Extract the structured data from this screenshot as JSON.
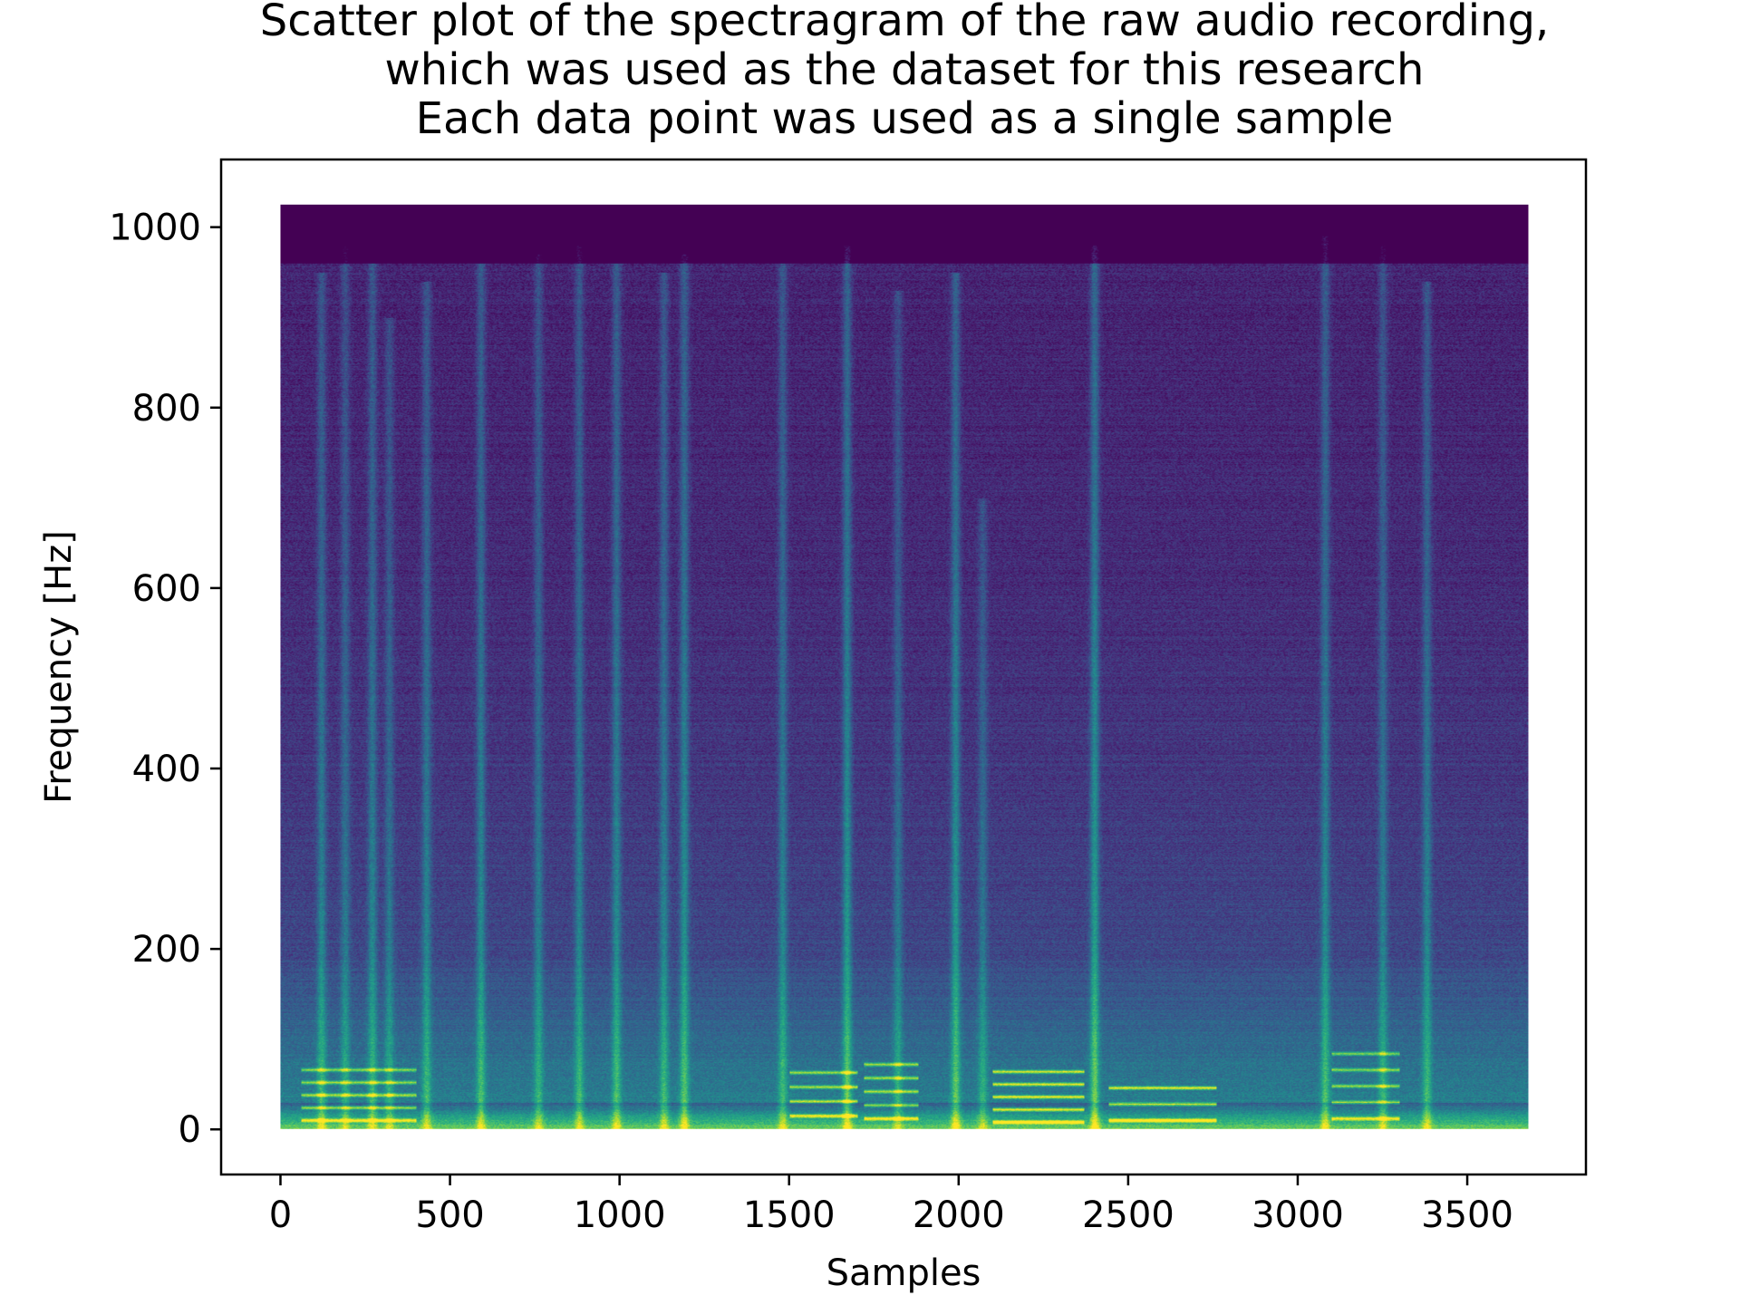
{
  "chart_data": {
    "type": "scatter",
    "render_style": "spectrogram",
    "colormap": "viridis",
    "title_lines": [
      "Scatter plot of the spectragram of the raw audio recording,",
      "which was used as the dataset for this research",
      "Each data point was used as a single sample"
    ],
    "xlabel": "Samples",
    "ylabel": "Frequency [Hz]",
    "xlim": [
      -175,
      3850
    ],
    "ylim": [
      -50,
      1075
    ],
    "data_extent": {
      "x": [
        0,
        3680
      ],
      "y": [
        0,
        1025
      ]
    },
    "xticks": [
      0,
      500,
      1000,
      1500,
      2000,
      2500,
      3000,
      3500
    ],
    "xtick_labels": [
      "0",
      "500",
      "1000",
      "1500",
      "2000",
      "2500",
      "3000",
      "3500"
    ],
    "yticks": [
      0,
      200,
      400,
      600,
      800,
      1000
    ],
    "ytick_labels": [
      "0",
      "200",
      "400",
      "600",
      "800",
      "1000"
    ],
    "grid": false,
    "legend": false,
    "vertical_bursts": [
      {
        "x": 120,
        "top": 950,
        "strength": 0.55
      },
      {
        "x": 190,
        "top": 980,
        "strength": 0.45
      },
      {
        "x": 270,
        "top": 960,
        "strength": 0.55
      },
      {
        "x": 320,
        "top": 900,
        "strength": 0.45
      },
      {
        "x": 430,
        "top": 940,
        "strength": 0.55
      },
      {
        "x": 590,
        "top": 960,
        "strength": 0.6
      },
      {
        "x": 760,
        "top": 970,
        "strength": 0.5
      },
      {
        "x": 880,
        "top": 980,
        "strength": 0.55
      },
      {
        "x": 990,
        "top": 960,
        "strength": 0.6
      },
      {
        "x": 1130,
        "top": 950,
        "strength": 0.55
      },
      {
        "x": 1190,
        "top": 970,
        "strength": 0.65
      },
      {
        "x": 1480,
        "top": 960,
        "strength": 0.55
      },
      {
        "x": 1670,
        "top": 980,
        "strength": 0.7
      },
      {
        "x": 1820,
        "top": 930,
        "strength": 0.45
      },
      {
        "x": 1990,
        "top": 950,
        "strength": 0.7
      },
      {
        "x": 2070,
        "top": 700,
        "strength": 0.45
      },
      {
        "x": 2400,
        "top": 980,
        "strength": 0.75
      },
      {
        "x": 3080,
        "top": 990,
        "strength": 0.6
      },
      {
        "x": 3250,
        "top": 980,
        "strength": 0.5
      },
      {
        "x": 3380,
        "top": 940,
        "strength": 0.55
      }
    ],
    "harmonic_segments": [
      {
        "x0": 2100,
        "x1": 2370,
        "base": 8,
        "count": 5,
        "spacing": 14,
        "strength": 0.9
      },
      {
        "x0": 2440,
        "x1": 2760,
        "base": 10,
        "count": 3,
        "spacing": 18,
        "strength": 0.9
      },
      {
        "x0": 1500,
        "x1": 1700,
        "base": 15,
        "count": 4,
        "spacing": 16,
        "strength": 0.75
      },
      {
        "x0": 1720,
        "x1": 1880,
        "base": 12,
        "count": 5,
        "spacing": 15,
        "strength": 0.75
      },
      {
        "x0": 60,
        "x1": 400,
        "base": 10,
        "count": 5,
        "spacing": 14,
        "strength": 0.7
      },
      {
        "x0": 3100,
        "x1": 3300,
        "base": 12,
        "count": 5,
        "spacing": 18,
        "strength": 0.7
      }
    ]
  }
}
